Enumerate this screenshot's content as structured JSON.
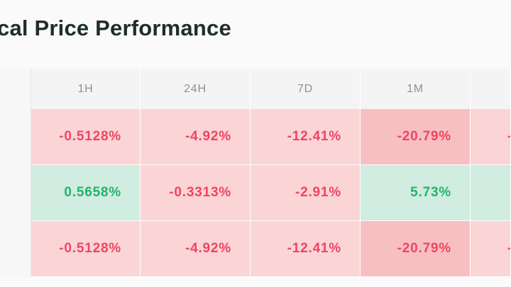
{
  "title": "cal Price Performance",
  "columns": [
    "",
    "1H",
    "24H",
    "7D",
    "1M",
    ""
  ],
  "rows": [
    {
      "cells": [
        {
          "text": "",
          "tone": "label"
        },
        {
          "text": "-0.5128%",
          "tone": "neg"
        },
        {
          "text": "-4.92%",
          "tone": "neg"
        },
        {
          "text": "-12.41%",
          "tone": "neg"
        },
        {
          "text": "-20.79%",
          "tone": "neg-strong"
        },
        {
          "text": "-",
          "tone": "neg"
        }
      ]
    },
    {
      "cells": [
        {
          "text": "",
          "tone": "label"
        },
        {
          "text": "0.5658%",
          "tone": "pos"
        },
        {
          "text": "-0.3313%",
          "tone": "neg"
        },
        {
          "text": "-2.91%",
          "tone": "neg"
        },
        {
          "text": "5.73%",
          "tone": "pos"
        },
        {
          "text": "",
          "tone": "pos"
        }
      ]
    },
    {
      "cells": [
        {
          "text": "",
          "tone": "label"
        },
        {
          "text": "-0.5128%",
          "tone": "neg"
        },
        {
          "text": "-4.92%",
          "tone": "neg"
        },
        {
          "text": "-12.41%",
          "tone": "neg"
        },
        {
          "text": "-20.79%",
          "tone": "neg-strong"
        },
        {
          "text": "-",
          "tone": "neg"
        }
      ]
    }
  ],
  "colors": {
    "negative_text": "#f04460",
    "positive_text": "#22b46a",
    "negative_bg": "#fbd4d6",
    "negative_strong_bg": "#f8bfc3",
    "positive_bg": "#d1ece0"
  }
}
